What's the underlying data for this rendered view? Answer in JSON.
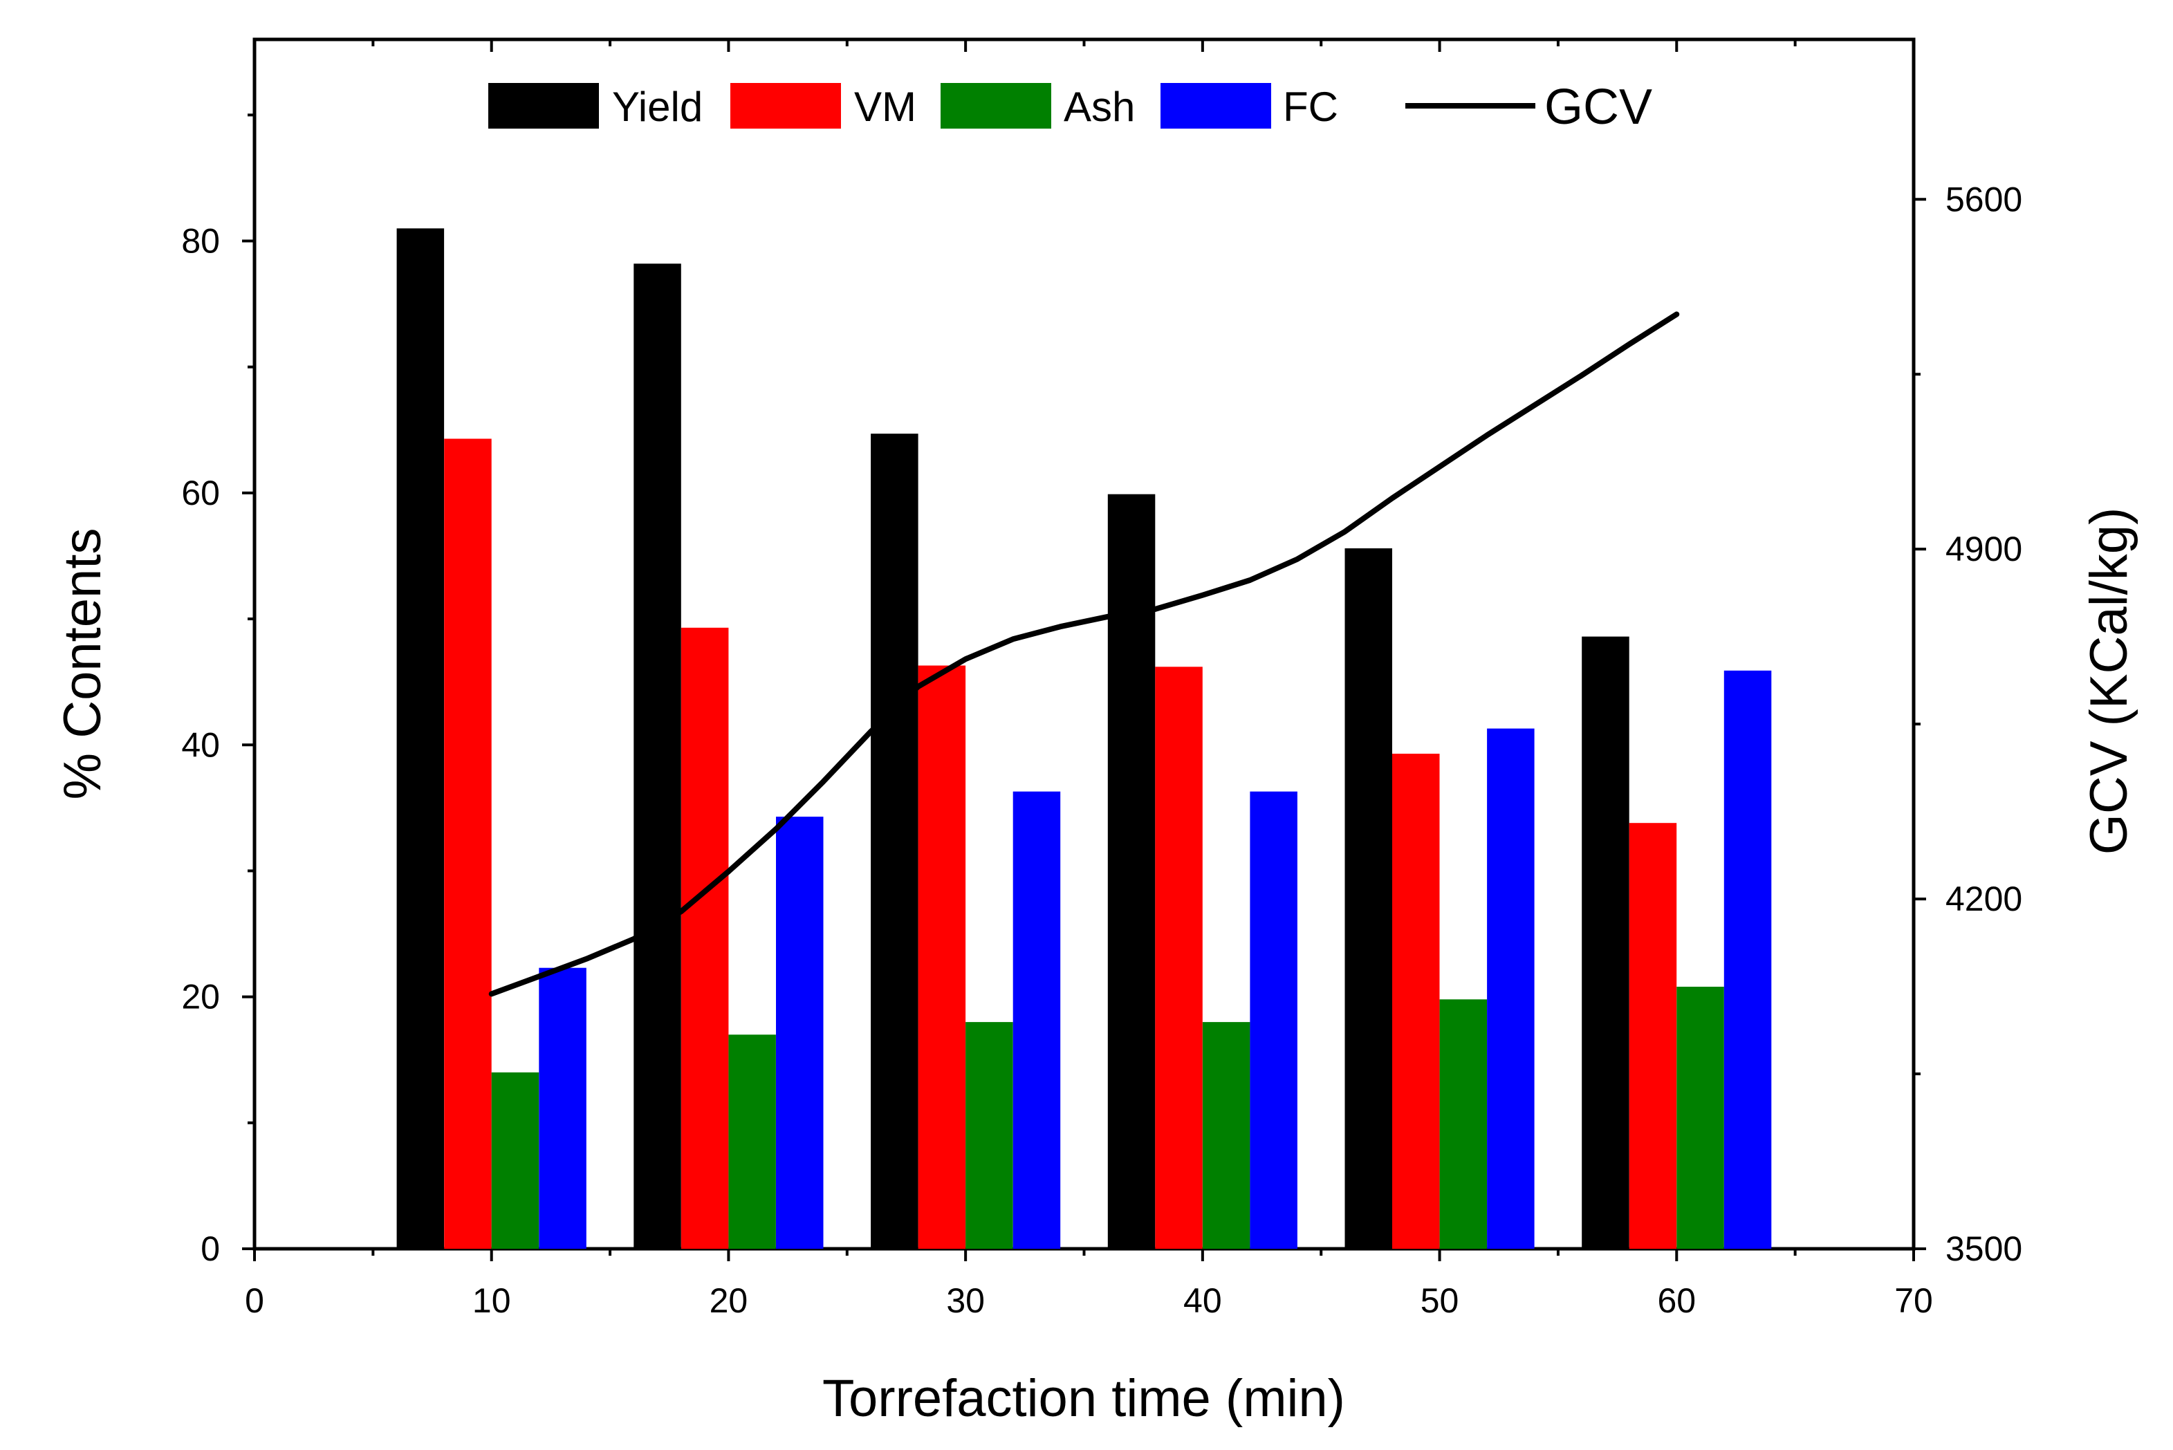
{
  "chart_data": {
    "type": "bar",
    "title": "",
    "xlabel": "Torrefaction time (min)",
    "ylabel": "% Contents",
    "y2label": "GCV (KCal/kg)",
    "xlim": [
      0,
      70
    ],
    "ylim": [
      0,
      96
    ],
    "y2lim": [
      3500,
      5920
    ],
    "xticks": [
      0,
      10,
      20,
      30,
      40,
      50,
      60,
      70
    ],
    "yticks": [
      0,
      20,
      40,
      60,
      80
    ],
    "y2ticks": [
      3500,
      4200,
      4900,
      5600
    ],
    "grid": false,
    "legend_position": "top",
    "categories": [
      10,
      20,
      30,
      40,
      50,
      60
    ],
    "series": [
      {
        "name": "Yield",
        "color": "#000000",
        "values": [
          81,
          78.2,
          64.7,
          59.9,
          55.6,
          48.6
        ]
      },
      {
        "name": "VM",
        "color": "#ff0000",
        "values": [
          64.3,
          49.3,
          46.3,
          46.2,
          39.3,
          33.8
        ]
      },
      {
        "name": "Ash",
        "color": "#008000",
        "values": [
          14,
          17,
          18,
          18,
          19.8,
          20.8
        ]
      },
      {
        "name": "FC",
        "color": "#0000ff",
        "values": [
          22.3,
          34.3,
          36.3,
          36.3,
          41.3,
          45.9
        ]
      }
    ],
    "line": {
      "name": "GCV",
      "color": "#000000",
      "axis": "right",
      "x": [
        10,
        12,
        14,
        16,
        18,
        20,
        22,
        24,
        26,
        28,
        30,
        32,
        34,
        36,
        38,
        40,
        42,
        44,
        46,
        48,
        50,
        52,
        54,
        56,
        58,
        60
      ],
      "y": [
        4010,
        4045,
        4080,
        4120,
        4175,
        4255,
        4340,
        4435,
        4535,
        4625,
        4680,
        4720,
        4745,
        4765,
        4780,
        4808,
        4838,
        4880,
        4935,
        5002,
        5065,
        5128,
        5188,
        5248,
        5310,
        5370
      ]
    }
  }
}
